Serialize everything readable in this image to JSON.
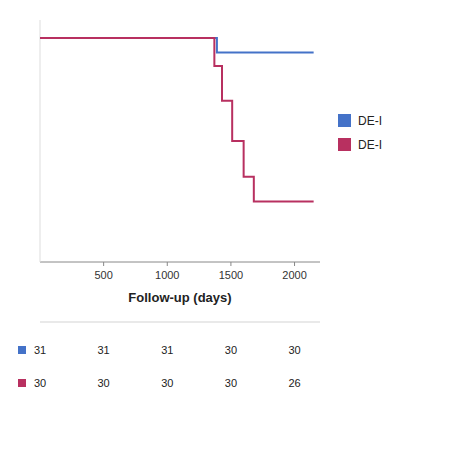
{
  "chart_data": {
    "type": "step",
    "xlabel": "Follow-up (days)",
    "xlim": [
      0,
      2200
    ],
    "ylim": [
      0.0,
      1.08
    ],
    "xticks": [
      500,
      1000,
      1500,
      2000
    ],
    "tick_labels": "x",
    "grid": false,
    "legend": "right",
    "series": [
      {
        "name": "DE-I",
        "color": "#4472c8",
        "x": [
          0,
          1390,
          1390,
          1500,
          1500,
          2150
        ],
        "values": [
          1.0,
          1.0,
          0.935,
          0.935,
          0.935,
          0.935
        ]
      },
      {
        "name": "DE-I",
        "color": "#b83060",
        "x": [
          0,
          1370,
          1370,
          1430,
          1430,
          1510,
          1510,
          1600,
          1600,
          1680,
          1680,
          2150
        ],
        "values": [
          1.0,
          1.0,
          0.875,
          0.875,
          0.72,
          0.72,
          0.54,
          0.54,
          0.38,
          0.38,
          0.27,
          0.27
        ]
      }
    ],
    "risk_table": {
      "x": [
        0,
        500,
        1000,
        1500,
        2000
      ],
      "series": [
        {
          "color": "#4472c8",
          "values": [
            31,
            31,
            31,
            30,
            30
          ]
        },
        {
          "color": "#b83060",
          "values": [
            30,
            30,
            30,
            30,
            26
          ]
        }
      ]
    }
  }
}
